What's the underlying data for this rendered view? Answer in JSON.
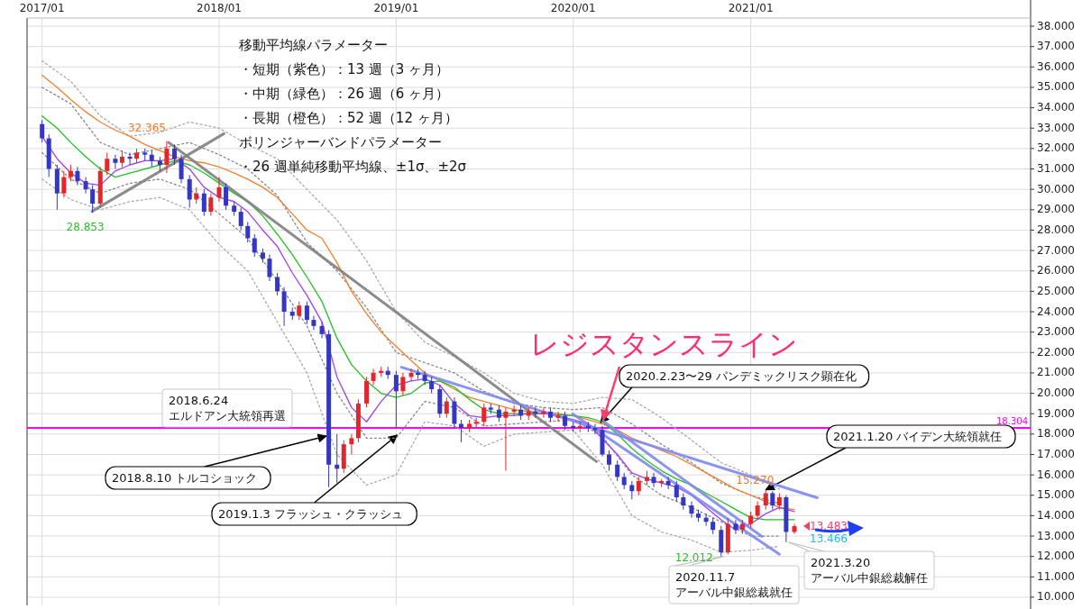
{
  "chart_data": {
    "type": "candlestick",
    "xlim": [
      "2016-12-01",
      "2022-08-01"
    ],
    "xticks": [
      {
        "value": "2017-01",
        "label": "2017/01"
      },
      {
        "value": "2018-01",
        "label": "2018/01"
      },
      {
        "value": "2019-01",
        "label": "2019/01"
      },
      {
        "value": "2020-01",
        "label": "2020/01"
      },
      {
        "value": "2021-01",
        "label": "2021/01"
      }
    ],
    "ylim": [
      9.6,
      38.4
    ],
    "yticks": [
      {
        "value": 10,
        "label": "10.000"
      },
      {
        "value": 11,
        "label": "11.000"
      },
      {
        "value": 12,
        "label": "12.000"
      },
      {
        "value": 13,
        "label": "13.000"
      },
      {
        "value": 14,
        "label": "14.000"
      },
      {
        "value": 15,
        "label": "15.000"
      },
      {
        "value": 16,
        "label": "16.000"
      },
      {
        "value": 17,
        "label": "17.000"
      },
      {
        "value": 18,
        "label": "18.000"
      },
      {
        "value": 19,
        "label": "19.000"
      },
      {
        "value": 20,
        "label": "20.000"
      },
      {
        "value": 21,
        "label": "21.000"
      },
      {
        "value": 22,
        "label": "22.000"
      },
      {
        "value": 23,
        "label": "23.000"
      },
      {
        "value": 24,
        "label": "24.000"
      },
      {
        "value": 25,
        "label": "25.000"
      },
      {
        "value": 26,
        "label": "26.000"
      },
      {
        "value": 27,
        "label": "27.000"
      },
      {
        "value": 28,
        "label": "28.000"
      },
      {
        "value": 29,
        "label": "29.000"
      },
      {
        "value": 30,
        "label": "30.000"
      },
      {
        "value": 31,
        "label": "31.000"
      },
      {
        "value": 32,
        "label": "32.000"
      },
      {
        "value": 33,
        "label": "33.000"
      },
      {
        "value": 34,
        "label": "34.000"
      },
      {
        "value": 35,
        "label": "35.000"
      },
      {
        "value": 36,
        "label": "36.000"
      },
      {
        "value": 37,
        "label": "37.000"
      },
      {
        "value": 38,
        "label": "38.000"
      }
    ],
    "grid": true,
    "series": [
      {
        "type": "line",
        "color": "#aaaaaa",
        "line_style": "dotted",
        "x": [
          "2017-01",
          "2017-03",
          "2017-05",
          "2017-07",
          "2017-09",
          "2017-11",
          "2018-01",
          "2018-03",
          "2018-05",
          "2018-07",
          "2018-09",
          "2018-11",
          "2019-01",
          "2019-03",
          "2019-05",
          "2019-07",
          "2019-09",
          "2019-11",
          "2020-01",
          "2020-03",
          "2020-05",
          "2020-07",
          "2020-09",
          "2020-11",
          "2021-01",
          "2021-03"
        ],
        "values": [
          36.3,
          35.3,
          33.6,
          32.6,
          32.8,
          33.3,
          33.0,
          32.2,
          31.5,
          30.0,
          28.5,
          26.5,
          24.0,
          22.5,
          21.8,
          21.0,
          20.0,
          19.6,
          19.5,
          19.8,
          19.7,
          18.8,
          17.7,
          16.6,
          16.0,
          15.3
        ]
      },
      {
        "type": "line",
        "color": "#888888",
        "line_style": "dotted",
        "x": [
          "2017-01",
          "2017-03",
          "2017-05",
          "2017-07",
          "2017-09",
          "2017-11",
          "2018-01",
          "2018-03",
          "2018-05",
          "2018-07",
          "2018-09",
          "2018-11",
          "2019-01",
          "2019-03",
          "2019-05",
          "2019-07",
          "2019-09",
          "2019-11",
          "2020-01",
          "2020-03",
          "2020-05",
          "2020-07",
          "2020-09",
          "2020-11",
          "2021-01",
          "2021-03"
        ],
        "values": [
          35.0,
          34.2,
          32.3,
          31.7,
          32.0,
          32.3,
          31.7,
          31.0,
          29.7,
          27.4,
          26.0,
          24.2,
          22.0,
          21.5,
          21.0,
          20.1,
          19.5,
          19.3,
          19.2,
          19.3,
          18.5,
          17.5,
          16.6,
          15.6,
          15.0,
          14.6
        ]
      },
      {
        "type": "line",
        "color": "#888888",
        "line_style": "dotted",
        "x": [
          "2017-01",
          "2017-03",
          "2017-05",
          "2017-07",
          "2017-09",
          "2017-11",
          "2018-01",
          "2018-03",
          "2018-05",
          "2018-07",
          "2018-09",
          "2018-11",
          "2019-01",
          "2019-03",
          "2019-05",
          "2019-07",
          "2019-09",
          "2019-11",
          "2020-01",
          "2020-03",
          "2020-05",
          "2020-07",
          "2020-09",
          "2020-11",
          "2021-01",
          "2021-03"
        ],
        "values": [
          31.8,
          30.5,
          29.8,
          30.3,
          30.5,
          30.0,
          28.8,
          27.6,
          25.5,
          23.3,
          20.0,
          17.8,
          17.8,
          19.6,
          19.3,
          18.4,
          18.5,
          18.6,
          18.7,
          17.9,
          16.0,
          15.0,
          14.4,
          13.7,
          13.0,
          13.0
        ]
      },
      {
        "type": "line",
        "color": "#aaaaaa",
        "line_style": "dotted",
        "x": [
          "2017-01",
          "2017-03",
          "2017-05",
          "2017-07",
          "2017-09",
          "2017-11",
          "2018-01",
          "2018-03",
          "2018-05",
          "2018-07",
          "2018-09",
          "2018-11",
          "2019-01",
          "2019-03",
          "2019-05",
          "2019-07",
          "2019-09",
          "2019-11",
          "2020-01",
          "2020-03",
          "2020-05",
          "2020-07",
          "2020-09",
          "2020-11",
          "2021-01",
          "2021-03"
        ],
        "values": [
          30.5,
          29.5,
          29.0,
          29.4,
          29.6,
          29.0,
          27.3,
          26.0,
          23.5,
          21.0,
          17.0,
          15.5,
          16.0,
          18.6,
          18.4,
          17.4,
          18.0,
          18.1,
          18.2,
          16.5,
          14.0,
          13.2,
          12.8,
          12.2,
          12.3,
          12.5
        ]
      },
      {
        "type": "line",
        "color": "#f08030",
        "x": [
          "2017-01",
          "2017-02",
          "2017-03",
          "2017-04",
          "2017-05",
          "2017-06",
          "2017-07",
          "2017-08",
          "2017-09",
          "2017-10",
          "2017-11",
          "2017-12",
          "2018-01",
          "2018-02",
          "2018-03",
          "2018-04",
          "2018-05",
          "2018-06",
          "2018-07",
          "2018-08",
          "2018-09",
          "2018-10",
          "2018-11",
          "2018-12",
          "2019-01",
          "2019-02",
          "2019-03",
          "2019-04",
          "2019-05",
          "2019-06",
          "2019-07",
          "2019-08",
          "2019-09",
          "2019-10",
          "2019-11",
          "2019-12",
          "2020-01",
          "2020-02",
          "2020-03",
          "2020-04",
          "2020-05",
          "2020-06",
          "2020-07",
          "2020-08",
          "2020-09",
          "2020-10",
          "2020-11",
          "2020-12",
          "2021-01",
          "2021-02",
          "2021-03",
          "2021-04"
        ],
        "values": [
          35.6,
          35.0,
          34.4,
          33.8,
          33.3,
          32.9,
          32.6,
          32.2,
          31.9,
          31.6,
          31.4,
          31.3,
          31.1,
          30.8,
          30.5,
          30.1,
          29.6,
          28.8,
          28.0,
          27.6,
          26.4,
          25.0,
          23.9,
          23.0,
          22.3,
          21.6,
          21.0,
          20.6,
          20.2,
          19.8,
          19.6,
          19.4,
          19.2,
          19.1,
          19.1,
          19.0,
          18.9,
          18.7,
          18.5,
          18.2,
          17.8,
          17.5,
          17.2,
          16.9,
          16.5,
          16.1,
          15.7,
          15.3,
          15.0,
          14.7,
          14.4,
          14.3
        ]
      },
      {
        "type": "line",
        "color": "#22c022",
        "x": [
          "2017-01",
          "2017-02",
          "2017-03",
          "2017-04",
          "2017-05",
          "2017-06",
          "2017-07",
          "2017-08",
          "2017-09",
          "2017-10",
          "2017-11",
          "2017-12",
          "2018-01",
          "2018-02",
          "2018-03",
          "2018-04",
          "2018-05",
          "2018-06",
          "2018-07",
          "2018-08",
          "2018-09",
          "2018-10",
          "2018-11",
          "2018-12",
          "2019-01",
          "2019-02",
          "2019-03",
          "2019-04",
          "2019-05",
          "2019-06",
          "2019-07",
          "2019-08",
          "2019-09",
          "2019-10",
          "2019-11",
          "2019-12",
          "2020-01",
          "2020-02",
          "2020-03",
          "2020-04",
          "2020-05",
          "2020-06",
          "2020-07",
          "2020-08",
          "2020-09",
          "2020-10",
          "2020-11",
          "2020-12",
          "2021-01",
          "2021-02",
          "2021-03",
          "2021-04"
        ],
        "values": [
          33.6,
          33.0,
          32.3,
          31.6,
          31.0,
          30.6,
          30.8,
          31.0,
          31.2,
          31.4,
          31.2,
          30.8,
          30.3,
          29.8,
          29.4,
          28.7,
          27.8,
          26.8,
          25.7,
          24.5,
          22.7,
          21.4,
          20.6,
          20.0,
          19.8,
          20.0,
          20.5,
          20.6,
          20.3,
          19.7,
          19.2,
          19.0,
          19.0,
          19.0,
          19.0,
          18.95,
          18.9,
          18.8,
          18.6,
          18.0,
          17.3,
          16.7,
          16.2,
          15.8,
          15.5,
          15.1,
          14.7,
          14.3,
          13.9,
          13.8,
          13.8,
          13.8
        ]
      },
      {
        "type": "line",
        "color": "#a040f0",
        "x": [
          "2017-01",
          "2017-02",
          "2017-03",
          "2017-04",
          "2017-05",
          "2017-06",
          "2017-07",
          "2017-08",
          "2017-09",
          "2017-10",
          "2017-11",
          "2017-12",
          "2018-01",
          "2018-02",
          "2018-03",
          "2018-04",
          "2018-05",
          "2018-06",
          "2018-07",
          "2018-08",
          "2018-09",
          "2018-10",
          "2018-11",
          "2018-12",
          "2019-01",
          "2019-02",
          "2019-03",
          "2019-04",
          "2019-05",
          "2019-06",
          "2019-07",
          "2019-08",
          "2019-09",
          "2019-10",
          "2019-11",
          "2019-12",
          "2020-01",
          "2020-02",
          "2020-03",
          "2020-04",
          "2020-05",
          "2020-06",
          "2020-07",
          "2020-08",
          "2020-09",
          "2020-10",
          "2020-11",
          "2020-12",
          "2021-01",
          "2021-02",
          "2021-03",
          "2021-04"
        ],
        "values": [
          32.6,
          31.5,
          30.8,
          30.3,
          30.2,
          30.9,
          31.2,
          31.4,
          31.4,
          31.5,
          31.0,
          30.1,
          29.6,
          29.4,
          28.9,
          28.0,
          27.2,
          25.9,
          24.8,
          23.5,
          20.8,
          19.3,
          18.6,
          19.6,
          20.4,
          20.6,
          20.7,
          20.4,
          19.5,
          18.9,
          18.8,
          18.9,
          18.9,
          19.0,
          19.0,
          18.9,
          18.7,
          18.5,
          null,
          17.0,
          16.1,
          15.8,
          15.6,
          15.4,
          15.0,
          14.4,
          13.8,
          13.3,
          13.6,
          14.1,
          14.4,
          14.2
        ]
      },
      {
        "type": "line",
        "color": "#808080",
        "x": [
          "2017-04-14",
          "2018-01-11"
        ],
        "values": [
          28.92,
          32.73
        ]
      },
      {
        "type": "line",
        "color": "#808080",
        "x": [
          "2017-09-19",
          "2020-02-18"
        ],
        "values": [
          32.3,
          16.65
        ]
      },
      {
        "type": "line",
        "color": "#8088f0",
        "x": [
          "2019-01-12",
          "2021-05-18"
        ],
        "values": [
          21.28,
          14.88
        ]
      },
      {
        "type": "line",
        "color": "#8088f0",
        "x": [
          "2019-12-31",
          "2021-03-01"
        ],
        "values": [
          18.99,
          12.11
        ]
      },
      {
        "type": "line",
        "color": "#8088f0",
        "x": [
          "2020-03-03",
          "2021-01-24"
        ],
        "values": [
          18.64,
          12.98
        ]
      },
      {
        "color": "#3436c4",
        "x": [
          "2017-01-01",
          "2017-01-15",
          "2017-02-01",
          "2017-03-15",
          "2017-04-01",
          "2017-04-15",
          "2017-06-01",
          "2017-07-01",
          "2017-08-01",
          "2017-08-15",
          "2017-09-01",
          "2017-10-01",
          "2017-10-15",
          "2017-11-01",
          "2017-12-01",
          "2018-01-15",
          "2018-02-01",
          "2018-02-15",
          "2018-03-01",
          "2018-03-15",
          "2018-04-01",
          "2018-04-15",
          "2018-05-01",
          "2018-05-15",
          "2018-06-01",
          "2018-07-01",
          "2018-07-15",
          "2018-08-01",
          "2018-08-15",
          "2018-09-01",
          "2018-12-15",
          "2019-01-01",
          "2019-02-15",
          "2019-03-01",
          "2019-03-15",
          "2019-04-01",
          "2019-05-01",
          "2019-05-15",
          "2019-07-15",
          "2019-08-01",
          "2019-09-15",
          "2019-10-15",
          "2019-11-15",
          "2019-12-15",
          "2020-01-01",
          "2020-02-01",
          "2020-02-15",
          "2020-03-01",
          "2020-03-15",
          "2020-04-01",
          "2020-04-15",
          "2020-05-01",
          "2020-06-15",
          "2020-07-15",
          "2020-08-01",
          "2020-08-15",
          "2020-09-01",
          "2020-09-15",
          "2020-10-01",
          "2020-10-15",
          "2020-11-01",
          "2020-12-01",
          "2021-02-15",
          "2021-03-15"
        ],
        "ohlc": [
          [
            33.2,
            33.4,
            32.3,
            32.5
          ],
          [
            32.5,
            32.7,
            30.6,
            31.0
          ],
          [
            31.0,
            31.2,
            29.0,
            29.8
          ],
          [
            30.9,
            31.1,
            30.2,
            30.4
          ],
          [
            30.4,
            30.6,
            29.8,
            30.0
          ],
          [
            30.0,
            30.2,
            28.853,
            29.3
          ],
          [
            31.5,
            31.7,
            31.0,
            31.3
          ],
          [
            31.6,
            31.8,
            31.2,
            31.5
          ],
          [
            31.8,
            32.0,
            31.4,
            31.7
          ],
          [
            31.7,
            31.9,
            31.1,
            31.4
          ],
          [
            31.4,
            31.6,
            30.9,
            31.2
          ],
          [
            32.0,
            32.2,
            31.2,
            31.5
          ],
          [
            31.5,
            31.7,
            30.3,
            30.5
          ],
          [
            30.5,
            30.7,
            29.1,
            29.5
          ],
          [
            29.8,
            30.0,
            28.7,
            28.9
          ],
          [
            30.1,
            30.3,
            29.0,
            29.2
          ],
          [
            29.2,
            29.4,
            28.7,
            28.9
          ],
          [
            28.9,
            29.1,
            28.0,
            28.2
          ],
          [
            28.2,
            28.4,
            27.4,
            27.6
          ],
          [
            27.6,
            27.8,
            26.7,
            26.9
          ],
          [
            26.9,
            27.1,
            26.4,
            26.6
          ],
          [
            26.6,
            26.8,
            25.5,
            25.7
          ],
          [
            25.7,
            25.9,
            24.8,
            25.0
          ],
          [
            25.0,
            25.2,
            23.3,
            24.0
          ],
          [
            24.0,
            24.2,
            23.6,
            23.8
          ],
          [
            24.3,
            24.5,
            23.4,
            23.6
          ],
          [
            23.6,
            23.8,
            23.1,
            23.3
          ],
          [
            23.3,
            23.5,
            22.7,
            22.9
          ],
          [
            22.9,
            23.1,
            15.4,
            16.5
          ],
          [
            16.5,
            18.0,
            15.6,
            16.3
          ],
          [
            21.1,
            21.3,
            20.7,
            20.9
          ],
          [
            20.9,
            21.1,
            18.3,
            20.1
          ],
          [
            21.0,
            21.2,
            20.7,
            20.9
          ],
          [
            20.9,
            21.1,
            20.4,
            20.6
          ],
          [
            20.6,
            20.8,
            20.0,
            20.2
          ],
          [
            20.2,
            20.4,
            18.8,
            19.0
          ],
          [
            19.6,
            19.8,
            18.3,
            18.5
          ],
          [
            18.5,
            18.7,
            17.6,
            18.3
          ],
          [
            19.3,
            19.5,
            19.0,
            19.2
          ],
          [
            19.2,
            19.4,
            18.6,
            18.8
          ],
          [
            19.2,
            19.4,
            18.7,
            18.9
          ],
          [
            19.1,
            19.3,
            18.8,
            19.0
          ],
          [
            19.1,
            19.3,
            18.6,
            18.8
          ],
          [
            18.9,
            19.1,
            18.2,
            18.4
          ],
          [
            18.4,
            18.6,
            18.1,
            18.3
          ],
          [
            18.4,
            18.6,
            18.1,
            18.3
          ],
          [
            18.3,
            18.5,
            18.0,
            18.2
          ],
          [
            18.2,
            18.4,
            16.9,
            17.0
          ],
          [
            17.0,
            17.2,
            16.2,
            16.5
          ],
          [
            16.5,
            16.7,
            15.7,
            15.9
          ],
          [
            15.9,
            16.1,
            15.3,
            15.5
          ],
          [
            15.5,
            15.7,
            14.8,
            15.2
          ],
          [
            15.9,
            16.1,
            15.4,
            15.6
          ],
          [
            15.7,
            15.9,
            15.3,
            15.5
          ],
          [
            15.5,
            15.7,
            14.7,
            14.9
          ],
          [
            14.9,
            15.1,
            14.3,
            14.5
          ],
          [
            14.5,
            14.7,
            13.9,
            14.1
          ],
          [
            14.1,
            14.3,
            13.7,
            13.9
          ],
          [
            13.9,
            14.1,
            13.5,
            13.7
          ],
          [
            13.7,
            13.9,
            13.1,
            13.3
          ],
          [
            13.3,
            13.5,
            12.012,
            12.2
          ],
          [
            13.6,
            13.8,
            13.1,
            13.3
          ],
          [
            15.1,
            15.2,
            14.3,
            14.5
          ],
          [
            14.9,
            15.0,
            12.7,
            13.2
          ]
        ]
      },
      {
        "color": "#e3262c",
        "x": [
          "2017-02-15",
          "2017-03-01",
          "2017-05-01",
          "2017-05-15",
          "2017-06-15",
          "2017-07-15",
          "2017-09-15",
          "2017-11-15",
          "2017-12-15",
          "2018-01-01",
          "2018-06-15",
          "2018-09-15",
          "2018-10-01",
          "2018-10-15",
          "2018-11-01",
          "2018-11-15",
          "2018-12-01",
          "2019-01-15",
          "2019-02-01",
          "2019-04-15",
          "2019-06-01",
          "2019-06-15",
          "2019-07-01",
          "2019-08-15",
          "2019-09-01",
          "2019-10-01",
          "2019-11-01",
          "2019-12-01",
          "2020-01-15",
          "2020-05-15",
          "2020-06-01",
          "2020-07-01",
          "2020-11-15",
          "2020-12-15",
          "2021-01-01",
          "2021-01-15",
          "2021-02-01",
          "2021-03-01",
          "2021-04-01"
        ],
        "ohlc": [
          [
            29.8,
            30.9,
            29.6,
            30.6
          ],
          [
            30.6,
            31.2,
            30.4,
            30.9
          ],
          [
            29.3,
            31.1,
            29.1,
            30.9
          ],
          [
            30.9,
            31.8,
            30.7,
            31.5
          ],
          [
            31.3,
            31.9,
            31.1,
            31.6
          ],
          [
            31.5,
            32.0,
            31.3,
            31.8
          ],
          [
            31.2,
            32.365,
            30.8,
            32.0
          ],
          [
            29.5,
            30.1,
            29.3,
            29.8
          ],
          [
            28.9,
            29.8,
            28.7,
            29.6
          ],
          [
            29.6,
            30.6,
            29.4,
            30.1
          ],
          [
            23.8,
            24.5,
            23.6,
            24.3
          ],
          [
            16.3,
            17.7,
            16.1,
            17.5
          ],
          [
            17.5,
            18.0,
            17.0,
            17.8
          ],
          [
            17.8,
            19.7,
            17.6,
            19.5
          ],
          [
            19.5,
            20.8,
            19.3,
            20.6
          ],
          [
            20.6,
            21.2,
            20.4,
            21.0
          ],
          [
            21.0,
            21.3,
            20.8,
            21.1
          ],
          [
            20.1,
            21.0,
            19.9,
            20.8
          ],
          [
            20.8,
            21.2,
            20.6,
            21.0
          ],
          [
            19.0,
            19.8,
            18.8,
            19.6
          ],
          [
            18.3,
            18.7,
            18.1,
            18.5
          ],
          [
            18.5,
            18.8,
            18.3,
            18.6
          ],
          [
            18.6,
            19.5,
            18.4,
            19.3
          ],
          [
            18.8,
            19.3,
            16.2,
            19.1
          ],
          [
            19.1,
            19.4,
            18.9,
            19.2
          ],
          [
            18.9,
            19.3,
            18.7,
            19.1
          ],
          [
            19.0,
            19.3,
            18.8,
            19.1
          ],
          [
            18.8,
            19.1,
            18.6,
            18.9
          ],
          [
            18.3,
            18.6,
            18.1,
            18.4
          ],
          [
            15.2,
            15.9,
            15.0,
            15.7
          ],
          [
            15.7,
            16.2,
            15.5,
            15.9
          ],
          [
            15.6,
            15.8,
            15.4,
            15.7
          ],
          [
            12.2,
            13.9,
            12.1,
            13.6
          ],
          [
            13.3,
            13.8,
            13.1,
            13.6
          ],
          [
            13.6,
            14.2,
            13.4,
            14.0
          ],
          [
            14.0,
            14.7,
            13.8,
            14.5
          ],
          [
            14.5,
            15.27,
            14.3,
            15.1
          ],
          [
            14.5,
            15.1,
            14.3,
            14.9
          ],
          [
            13.2,
            13.6,
            13.1,
            13.483
          ]
        ]
      }
    ],
    "ref_lines": [
      {
        "axis": "y",
        "value": 18.304,
        "label": "18.304",
        "color": "#ff00ff"
      }
    ],
    "annotations": [
      "移動平均線パラメーター",
      "・短期（紫色）：13 週（3 ヶ月）",
      "・中期（緑色）：26 週（6 ヶ月）",
      "・長期（橙色）：52 週（12 ヶ月）",
      "ボリンジャーバンドパラメーター",
      "・26 週単純移動平均線、±1σ、±2σ",
      "レジスタンスライン",
      "2018.6.24\nエルドアン大統領再選",
      {
        "text": "2018.8.10 トルコショック",
        "x": "2018-08-10",
        "y": 17.9
      },
      {
        "text": "2019.1.3 フラッシュ・クラッシュ",
        "x": "2019-01-03",
        "y": 17.95
      },
      {
        "text": "2020.2.23〜29 パンデミックリスク顕在化",
        "x": "2020-02-26",
        "y": 18.55
      },
      {
        "text": "2021.1.20 バイデン大統領就任",
        "x": "2021-02-01",
        "y": 15.27
      },
      {
        "text": "2020.11.7\nアーバル中銀総裁就任",
        "x": "2020-11-07",
        "y": 12.012
      },
      {
        "text": "2021.3.20\nアーバル中銀総裁解任",
        "x": "2021-03-20",
        "y": 12.7
      },
      {
        "text": "32.365",
        "x": "2017-09-15",
        "y": 32.365
      },
      {
        "text": "28.853",
        "x": "2017-04-15",
        "y": 28.853
      },
      {
        "text": "12.012",
        "x": "2020-11-01",
        "y": 12.012
      },
      {
        "text": "15.270",
        "x": "2021-02-01",
        "y": 15.27
      },
      {
        "text": "13.483",
        "x": "2021-04-01",
        "y": 13.483
      },
      {
        "text": "13.466",
        "x": "2021-04-01",
        "y": 13.466
      }
    ]
  }
}
